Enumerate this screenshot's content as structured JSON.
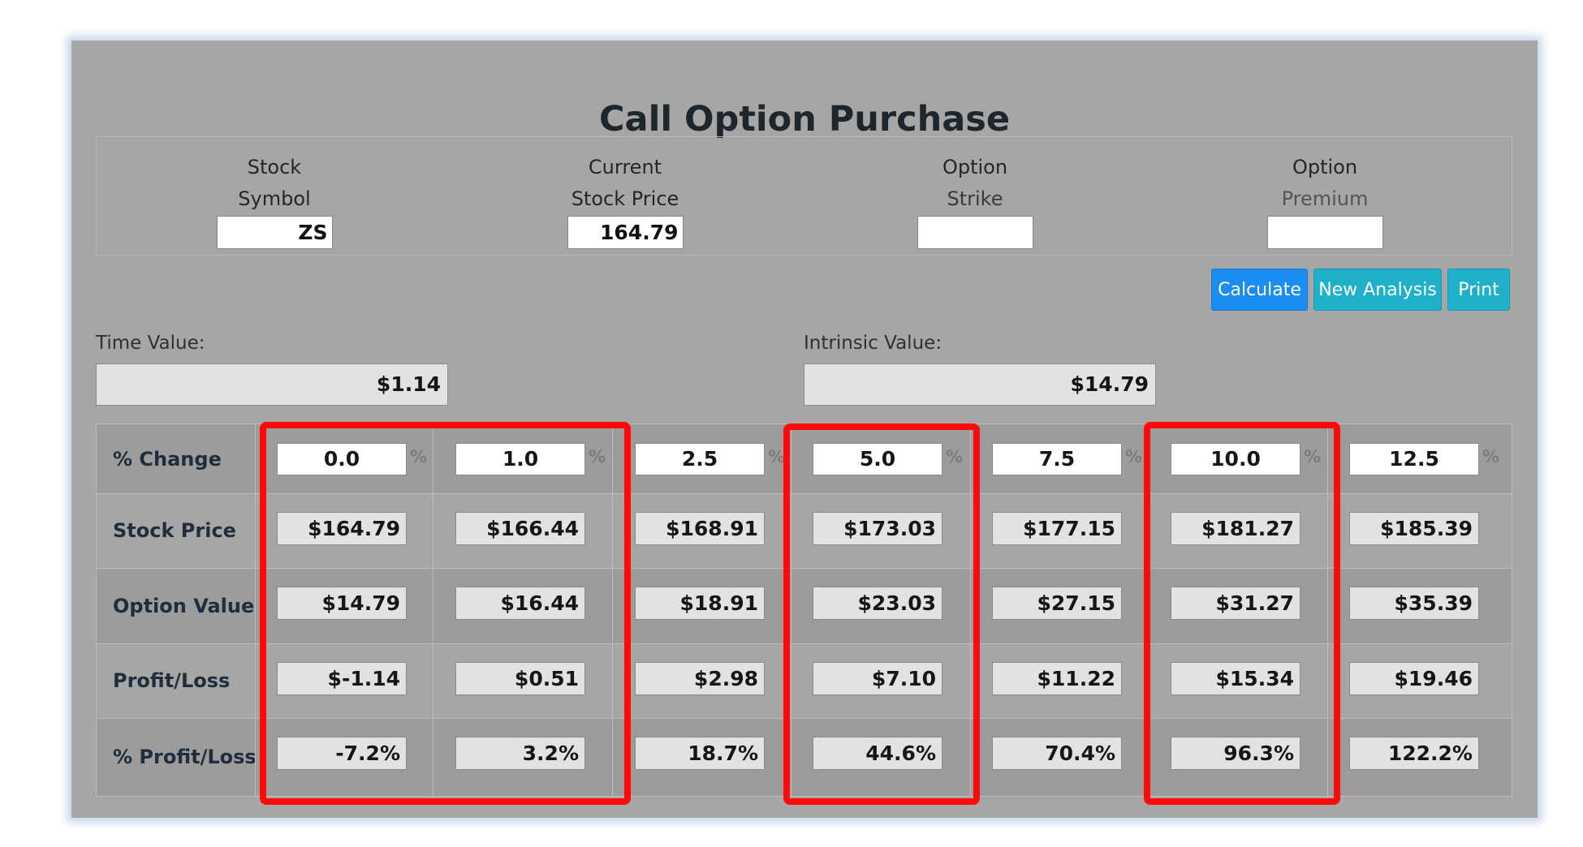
{
  "title": "Call Option Purchase",
  "inputs": [
    {
      "label1": "Stock",
      "label2": "Symbol",
      "value": "ZS"
    },
    {
      "label1": "Current",
      "label2": "Stock Price",
      "value": "164.79"
    },
    {
      "label1": "Option",
      "label2": "Strike",
      "value": ""
    },
    {
      "label1": "Option",
      "label2": "Premium",
      "value": ""
    }
  ],
  "buttons": {
    "calculate": "Calculate",
    "new_analysis": "New Analysis",
    "print": "Print"
  },
  "colors": {
    "primary": "#1a8cf2",
    "info": "#1eb1c9",
    "highlight": "#ff0a0a",
    "panel": "#a6a6a6"
  },
  "time_value": {
    "label": "Time Value:",
    "value": "$1.14"
  },
  "intrinsic_value": {
    "label": "Intrinsic Value:",
    "value": "$14.79"
  },
  "table": {
    "row_labels": [
      "% Change",
      "Stock Price",
      "Option Value",
      "Profit/Loss",
      "% Profit/Loss"
    ],
    "pct_symbol": "%",
    "change": [
      "0.0",
      "1.0",
      "2.5",
      "5.0",
      "7.5",
      "10.0",
      "12.5"
    ],
    "stock_price": [
      "$164.79",
      "$166.44",
      "$168.91",
      "$173.03",
      "$177.15",
      "$181.27",
      "$185.39"
    ],
    "option_value": [
      "$14.79",
      "$16.44",
      "$18.91",
      "$23.03",
      "$27.15",
      "$31.27",
      "$35.39"
    ],
    "profit_loss": [
      "$-1.14",
      "$0.51",
      "$2.98",
      "$7.10",
      "$11.22",
      "$15.34",
      "$19.46"
    ],
    "pct_profit_loss": [
      "-7.2%",
      "3.2%",
      "18.7%",
      "44.6%",
      "70.4%",
      "96.3%",
      "122.2%"
    ]
  }
}
